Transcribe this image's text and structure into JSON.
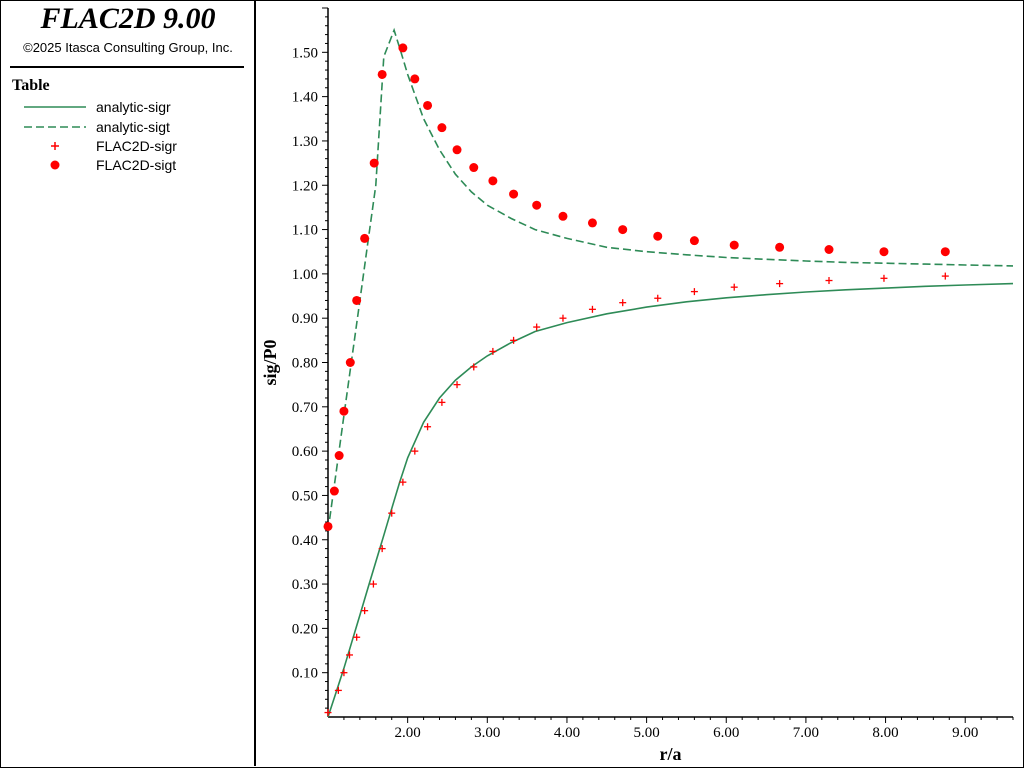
{
  "header": {
    "title": "FLAC2D 9.00",
    "copyright": "©2025 Itasca Consulting Group, Inc."
  },
  "legend": {
    "title": "Table",
    "items": [
      {
        "label": "analytic-sigr",
        "style": "solid",
        "color": "#2e8b57"
      },
      {
        "label": "analytic-sigt",
        "style": "dashed",
        "color": "#2e8b57"
      },
      {
        "label": "FLAC2D-sigr",
        "style": "cross",
        "color": "#ff0000"
      },
      {
        "label": "FLAC2D-sigt",
        "style": "dot",
        "color": "#ff0000"
      }
    ]
  },
  "chart_data": {
    "type": "line",
    "xlabel": "r/a",
    "ylabel": "sig/P0",
    "xlim": [
      1.0,
      9.6
    ],
    "ylim": [
      0.0,
      1.6
    ],
    "xticks": [
      "2.00",
      "3.00",
      "4.00",
      "5.00",
      "6.00",
      "7.00",
      "8.00",
      "9.00"
    ],
    "yticks": [
      "0.10",
      "0.20",
      "0.30",
      "0.40",
      "0.50",
      "0.60",
      "0.70",
      "0.80",
      "0.90",
      "1.00",
      "1.10",
      "1.20",
      "1.30",
      "1.40",
      "1.50"
    ],
    "series": [
      {
        "name": "analytic-sigr",
        "kind": "line",
        "style": "solid",
        "color": "#2e8b57",
        "x": [
          1.0,
          1.1,
          1.2,
          1.3,
          1.4,
          1.5,
          1.6,
          1.7,
          1.8,
          1.9,
          2.0,
          2.2,
          2.4,
          2.6,
          2.8,
          3.0,
          3.3,
          3.6,
          4.0,
          4.5,
          5.0,
          5.5,
          6.0,
          6.5,
          7.0,
          7.5,
          8.0,
          8.5,
          9.0,
          9.6
        ],
        "y": [
          0.0,
          0.055,
          0.11,
          0.17,
          0.23,
          0.29,
          0.35,
          0.41,
          0.47,
          0.53,
          0.585,
          0.665,
          0.72,
          0.76,
          0.79,
          0.815,
          0.845,
          0.87,
          0.89,
          0.91,
          0.925,
          0.937,
          0.946,
          0.953,
          0.959,
          0.964,
          0.968,
          0.972,
          0.975,
          0.978
        ]
      },
      {
        "name": "analytic-sigt",
        "kind": "line",
        "style": "dashed",
        "color": "#2e8b57",
        "x": [
          1.0,
          1.1,
          1.2,
          1.3,
          1.4,
          1.5,
          1.6,
          1.7,
          1.83,
          1.9,
          2.0,
          2.2,
          2.4,
          2.6,
          2.8,
          3.0,
          3.3,
          3.6,
          4.0,
          4.5,
          5.0,
          5.5,
          6.0,
          6.5,
          7.0,
          7.5,
          8.0,
          8.5,
          9.0,
          9.6
        ],
        "y": [
          0.42,
          0.55,
          0.68,
          0.81,
          0.94,
          1.07,
          1.2,
          1.49,
          1.55,
          1.51,
          1.45,
          1.35,
          1.28,
          1.225,
          1.185,
          1.155,
          1.125,
          1.1,
          1.08,
          1.06,
          1.05,
          1.043,
          1.037,
          1.033,
          1.029,
          1.026,
          1.024,
          1.022,
          1.02,
          1.018
        ]
      },
      {
        "name": "FLAC2D-sigr",
        "kind": "scatter",
        "marker": "cross",
        "color": "#ff0000",
        "x": [
          1.0,
          1.13,
          1.2,
          1.27,
          1.36,
          1.46,
          1.57,
          1.68,
          1.8,
          1.94,
          2.09,
          2.25,
          2.43,
          2.62,
          2.83,
          3.07,
          3.33,
          3.62,
          3.95,
          4.32,
          4.7,
          5.14,
          5.6,
          6.1,
          6.67,
          7.29,
          7.98,
          8.75
        ],
        "y": [
          0.01,
          0.06,
          0.1,
          0.14,
          0.18,
          0.24,
          0.3,
          0.38,
          0.46,
          0.53,
          0.6,
          0.655,
          0.71,
          0.75,
          0.79,
          0.825,
          0.85,
          0.88,
          0.9,
          0.92,
          0.935,
          0.945,
          0.96,
          0.97,
          0.978,
          0.985,
          0.99,
          0.995
        ]
      },
      {
        "name": "FLAC2D-sigt",
        "kind": "scatter",
        "marker": "dot",
        "color": "#ff0000",
        "x": [
          1.0,
          1.08,
          1.14,
          1.2,
          1.28,
          1.36,
          1.46,
          1.58,
          1.68,
          1.94,
          2.09,
          2.25,
          2.43,
          2.62,
          2.83,
          3.07,
          3.33,
          3.62,
          3.95,
          4.32,
          4.7,
          5.14,
          5.6,
          6.1,
          6.67,
          7.29,
          7.98,
          8.75
        ],
        "y": [
          0.43,
          0.51,
          0.59,
          0.69,
          0.8,
          0.94,
          1.08,
          1.25,
          1.45,
          1.51,
          1.44,
          1.38,
          1.33,
          1.28,
          1.24,
          1.21,
          1.18,
          1.155,
          1.13,
          1.115,
          1.1,
          1.085,
          1.075,
          1.065,
          1.06,
          1.055,
          1.05,
          1.05
        ]
      }
    ]
  }
}
